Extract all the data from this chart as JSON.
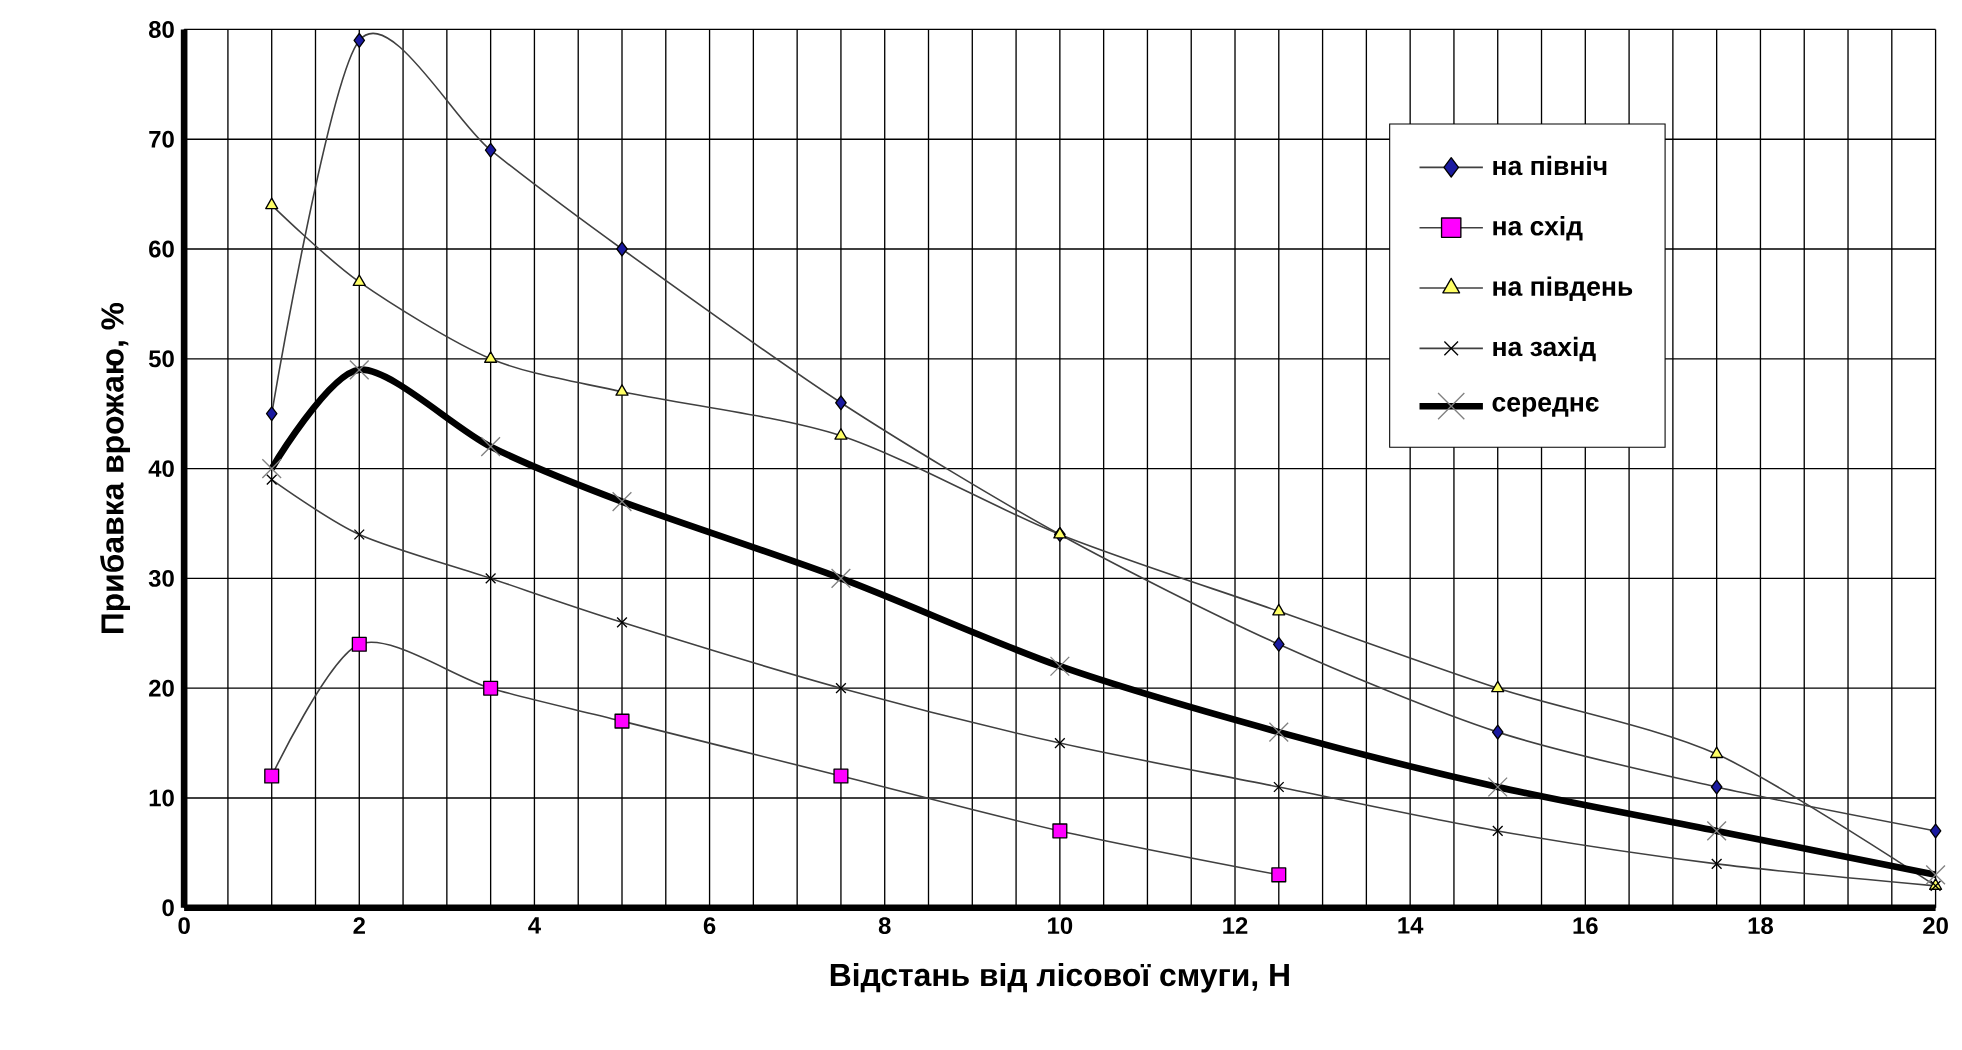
{
  "chart_data": {
    "type": "line",
    "xlabel": "Відстань від лісової смуги, Н",
    "ylabel": "Прибавка врожаю, %",
    "x": [
      1,
      2,
      3.5,
      5,
      7.5,
      10,
      12.5,
      15,
      17.5,
      20
    ],
    "series": [
      {
        "name": "на північ",
        "color": "#1a1aa0",
        "marker": "diamond",
        "values": [
          45,
          79,
          69,
          60,
          46,
          34,
          24,
          16,
          11,
          7
        ]
      },
      {
        "name": "на схід",
        "color": "#ff00ff",
        "marker": "square",
        "values": [
          12,
          24,
          20,
          17,
          12,
          7,
          3,
          null,
          null,
          null
        ]
      },
      {
        "name": "на південь",
        "color": "#ffff66",
        "marker": "triangle",
        "values": [
          64,
          57,
          50,
          47,
          43,
          34,
          27,
          20,
          14,
          2
        ]
      },
      {
        "name": "на захід",
        "color": "#000000",
        "marker": "cross",
        "values": [
          39,
          34,
          30,
          26,
          20,
          15,
          11,
          7,
          4,
          2
        ]
      },
      {
        "name": "середнє",
        "color": "#808080",
        "marker": "cross",
        "values": [
          40,
          49,
          42,
          37,
          30,
          22,
          16,
          11,
          7,
          3
        ]
      }
    ],
    "xlim": [
      0,
      20
    ],
    "ylim": [
      0,
      80
    ],
    "xticks": [
      0,
      {
        "value": 0.5,
        "label": null
      },
      {
        "value": 1,
        "label": null
      },
      {
        "value": 1.5,
        "label": null
      },
      2,
      {
        "value": 2.5,
        "label": null
      },
      {
        "value": 3,
        "label": null
      },
      {
        "value": 3.5,
        "label": null
      },
      4,
      {
        "value": 4.5,
        "label": null
      },
      {
        "value": 5,
        "label": null
      },
      {
        "value": 5.5,
        "label": null
      },
      6,
      {
        "value": 6.5,
        "label": null
      },
      {
        "value": 7,
        "label": null
      },
      {
        "value": 7.5,
        "label": null
      },
      8,
      {
        "value": 8.5,
        "label": null
      },
      {
        "value": 9,
        "label": null
      },
      {
        "value": 9.5,
        "label": null
      },
      10,
      {
        "value": 10.5,
        "label": null
      },
      {
        "value": 11,
        "label": null
      },
      {
        "value": 11.5,
        "label": null
      },
      12,
      {
        "value": 12.5,
        "label": null
      },
      {
        "value": 13,
        "label": null
      },
      {
        "value": 13.5,
        "label": null
      },
      14,
      {
        "value": 14.5,
        "label": null
      },
      {
        "value": 15,
        "label": null
      },
      {
        "value": 15.5,
        "label": null
      },
      16,
      {
        "value": 16.5,
        "label": null
      },
      {
        "value": 17,
        "label": null
      },
      {
        "value": 17.5,
        "label": null
      },
      18,
      {
        "value": 18.5,
        "label": null
      },
      {
        "value": 19,
        "label": null
      },
      {
        "value": 19.5,
        "label": null
      },
      20
    ],
    "yticks": [
      0,
      10,
      20,
      30,
      40,
      50,
      60,
      70,
      80
    ],
    "grid": true,
    "legend": "top right"
  }
}
